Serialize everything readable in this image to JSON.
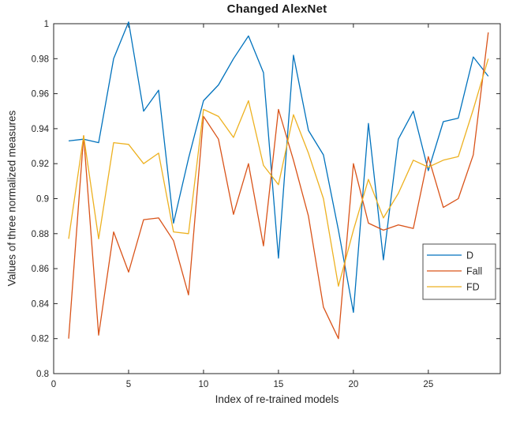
{
  "chart_data": {
    "type": "line",
    "title": "Changed AlexNet",
    "xlabel": "Index of re-trained models",
    "ylabel": "Values of three normalized measures",
    "x": [
      1,
      2,
      3,
      4,
      5,
      6,
      7,
      8,
      9,
      10,
      11,
      12,
      13,
      14,
      15,
      16,
      17,
      18,
      19,
      20,
      21,
      22,
      23,
      24,
      25,
      26,
      27,
      28,
      29
    ],
    "series": [
      {
        "name": "D",
        "color": "#0072BD",
        "values": [
          0.933,
          0.934,
          0.932,
          0.98,
          1.001,
          0.95,
          0.962,
          0.886,
          0.923,
          0.956,
          0.965,
          0.98,
          0.993,
          0.972,
          0.866,
          0.982,
          0.939,
          0.925,
          0.882,
          0.835,
          0.943,
          0.865,
          0.934,
          0.95,
          0.916,
          0.944,
          0.946,
          0.981,
          0.97
        ]
      },
      {
        "name": "Fall",
        "color": "#D95319",
        "values": [
          0.82,
          0.936,
          0.822,
          0.881,
          0.858,
          0.888,
          0.889,
          0.876,
          0.845,
          0.947,
          0.934,
          0.891,
          0.92,
          0.873,
          0.951,
          0.922,
          0.89,
          0.838,
          0.82,
          0.92,
          0.886,
          0.882,
          0.885,
          0.883,
          0.924,
          0.895,
          0.9,
          0.925,
          0.995
        ]
      },
      {
        "name": "FD",
        "color": "#EDB120",
        "values": [
          0.877,
          0.936,
          0.877,
          0.932,
          0.931,
          0.92,
          0.926,
          0.881,
          0.88,
          0.951,
          0.947,
          0.935,
          0.956,
          0.919,
          0.908,
          0.948,
          0.926,
          0.9,
          0.85,
          0.882,
          0.911,
          0.889,
          0.903,
          0.922,
          0.918,
          0.922,
          0.924,
          0.951,
          0.98
        ]
      }
    ],
    "xlim": [
      0,
      30
    ],
    "ylim": [
      0.8,
      1.0
    ],
    "xticks": [
      0,
      5,
      10,
      15,
      20,
      25
    ],
    "xtick_labels": [
      "0",
      "5",
      "10",
      "15",
      "20",
      "25"
    ],
    "yticks": [
      0.8,
      0.82,
      0.84,
      0.86,
      0.88,
      0.9,
      0.92,
      0.94,
      0.96,
      0.98,
      1.0
    ],
    "ytick_labels": [
      "0.8",
      "0.82",
      "0.84",
      "0.86",
      "0.88",
      "0.9",
      "0.92",
      "0.94",
      "0.96",
      "0.98",
      "1"
    ],
    "grid": false,
    "legend_position": "inside-right",
    "legend_labels": [
      "D",
      "Fall",
      "FD"
    ],
    "axis_color": "#262626"
  }
}
